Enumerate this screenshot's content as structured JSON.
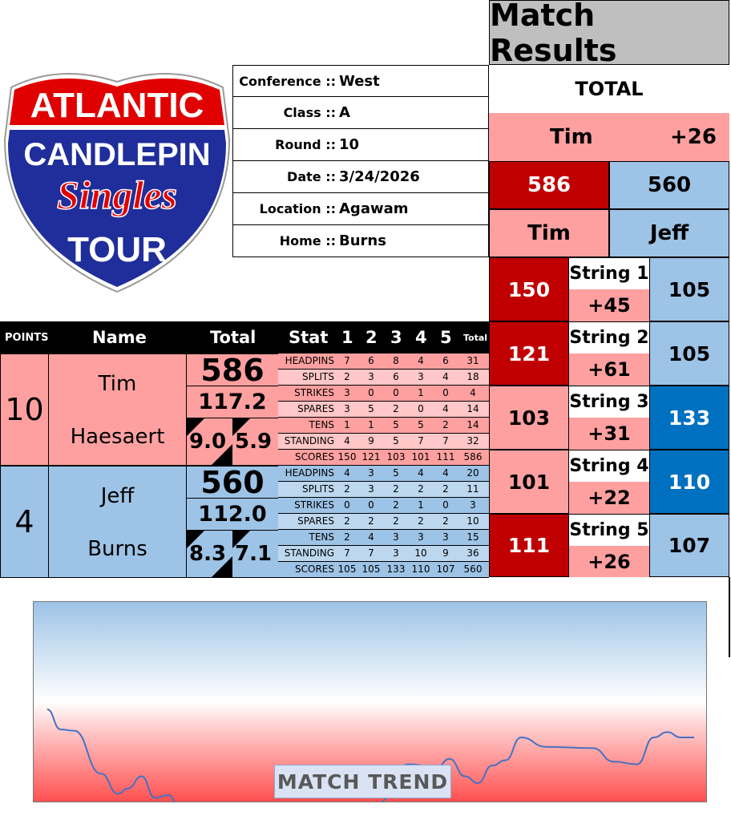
{
  "logo": {
    "line1": "ATLANTIC",
    "line2": "CANDLEPIN",
    "line3": "Singles",
    "line4": "TOUR"
  },
  "info": [
    {
      "key": "Conference ::",
      "value": "West"
    },
    {
      "key": "Class ::",
      "value": "A"
    },
    {
      "key": "Round ::",
      "value": "10"
    },
    {
      "key": "Date ::",
      "value": "3/24/2026"
    },
    {
      "key": "Location ::",
      "value": "Agawam"
    },
    {
      "key": "Home ::",
      "value": "Burns"
    }
  ],
  "results": {
    "title": "Match Results",
    "total_label": "TOTAL",
    "leader": "Tim",
    "margin": "+26",
    "score_a": "586",
    "score_b": "560",
    "name_a": "Tim",
    "name_b": "Jeff",
    "strings": [
      {
        "label": "String 1",
        "a": "150",
        "diff": "+45",
        "b": "105"
      },
      {
        "label": "String 2",
        "a": "121",
        "diff": "+61",
        "b": "105"
      },
      {
        "label": "String 3",
        "a": "103",
        "diff": "+31",
        "b": "133"
      },
      {
        "label": "String 4",
        "a": "101",
        "diff": "+22",
        "b": "110"
      },
      {
        "label": "String 5",
        "a": "111",
        "diff": "+26",
        "b": "107"
      }
    ]
  },
  "table": {
    "headers": {
      "points": "POINTS",
      "name": "Name",
      "total": "Total",
      "stat": "Stat",
      "g1": "1",
      "g2": "2",
      "g3": "3",
      "g4": "4",
      "g5": "5",
      "gt": "Total"
    },
    "players": [
      {
        "points": "10",
        "first": "Tim",
        "last": "Haesaert",
        "total": "586",
        "avg": "117.2",
        "s1": "9.0",
        "s2": "5.9",
        "stats": [
          [
            "HEADPINS",
            "7",
            "6",
            "8",
            "4",
            "6",
            "31"
          ],
          [
            "SPLITS",
            "2",
            "3",
            "6",
            "3",
            "4",
            "18"
          ],
          [
            "STRIKES",
            "3",
            "0",
            "0",
            "1",
            "0",
            "4"
          ],
          [
            "SPARES",
            "3",
            "5",
            "2",
            "0",
            "4",
            "14"
          ],
          [
            "TENS",
            "1",
            "1",
            "5",
            "5",
            "2",
            "14"
          ],
          [
            "STANDING",
            "4",
            "9",
            "5",
            "7",
            "7",
            "32"
          ],
          [
            "SCORES",
            "150",
            "121",
            "103",
            "101",
            "111",
            "586"
          ]
        ]
      },
      {
        "points": "4",
        "first": "Jeff",
        "last": "Burns",
        "total": "560",
        "avg": "112.0",
        "s1": "8.3",
        "s2": "7.1",
        "stats": [
          [
            "HEADPINS",
            "4",
            "3",
            "5",
            "4",
            "4",
            "20"
          ],
          [
            "SPLITS",
            "2",
            "3",
            "2",
            "2",
            "2",
            "11"
          ],
          [
            "STRIKES",
            "0",
            "0",
            "2",
            "1",
            "0",
            "3"
          ],
          [
            "SPARES",
            "2",
            "2",
            "2",
            "2",
            "2",
            "10"
          ],
          [
            "TENS",
            "2",
            "4",
            "3",
            "3",
            "3",
            "15"
          ],
          [
            "STANDING",
            "7",
            "7",
            "3",
            "10",
            "9",
            "36"
          ],
          [
            "SCORES",
            "105",
            "105",
            "133",
            "110",
            "107",
            "560"
          ]
        ]
      }
    ]
  },
  "colors": {
    "red_dark": "#c00000",
    "red_light": "#ffa0a0",
    "red_lighter": "#ffc7c7",
    "blue_light": "#9dc3e6",
    "blue_lighter": "#bdd7ee",
    "blue_dark": "#0070c0",
    "line": "#4472c4"
  },
  "chart_data": {
    "type": "line",
    "title": "MATCH TREND",
    "xlabel": "",
    "ylabel": "",
    "grid": false,
    "axes_visible": false,
    "x": [
      2,
      4,
      6,
      10,
      12.5,
      14,
      16,
      18,
      20,
      21.5,
      23.5,
      50,
      51,
      55.6,
      59.8,
      61.7,
      64,
      65.9,
      68,
      70,
      72.3,
      76,
      83,
      86,
      89.5,
      92,
      94,
      96,
      98
    ],
    "values": [
      5,
      20,
      21,
      53,
      68,
      64,
      55,
      71,
      69,
      77,
      76,
      77,
      75,
      46,
      48,
      42,
      55,
      60,
      47,
      43,
      26,
      33,
      34,
      44,
      46,
      26,
      22,
      26,
      26
    ],
    "xlim": [
      0,
      100
    ],
    "ylim": [
      -75,
      75
    ]
  }
}
